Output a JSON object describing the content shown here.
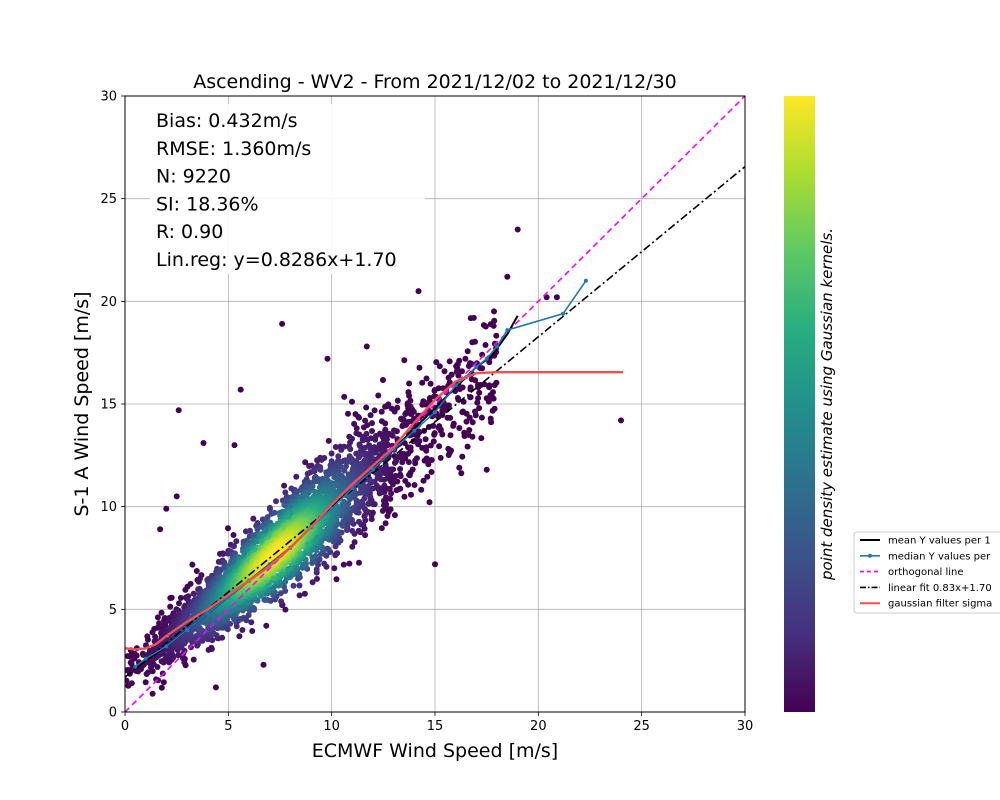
{
  "chart_data": {
    "type": "scatter",
    "title": "Ascending - WV2 - From 2021/12/02 to 2021/12/30",
    "xlabel": "ECMWF Wind Speed [m/s]",
    "ylabel": "S-1 A Wind Speed [m/s]",
    "xlim": [
      0,
      30
    ],
    "ylim": [
      0,
      30
    ],
    "xticks": [
      0,
      5,
      10,
      15,
      20,
      25,
      30
    ],
    "yticks": [
      0,
      5,
      10,
      15,
      20,
      25,
      30
    ],
    "grid": true,
    "colorbar_label": "point density estimate using Gaussian kernels.",
    "colormap": [
      "#440154",
      "#472f7d",
      "#3b528b",
      "#2c728e",
      "#21918c",
      "#28ae80",
      "#5ec962",
      "#addc30",
      "#fde725"
    ],
    "stats": [
      "Bias: 0.432m/s",
      "RMSE: 1.360m/s",
      "N: 9220",
      "SI: 18.36%",
      "R: 0.90",
      "Lin.reg: y=0.8286x+1.70"
    ],
    "legend": {
      "placement": "right of plot, partially cut off",
      "entries": [
        {
          "label": "mean Y values per 1",
          "color": "#000000",
          "style": "solid"
        },
        {
          "label": "median Y values per",
          "color": "#1f77b4",
          "style": "solid-dot"
        },
        {
          "label": "orthogonal line",
          "color": "#ff00ff",
          "style": "dashed"
        },
        {
          "label": "linear fit 0.83x+1.70",
          "color": "#000000",
          "style": "dashdot"
        },
        {
          "label": "gaussian filter sigma",
          "color": "#f05050",
          "style": "solid"
        }
      ]
    },
    "scatter": {
      "n_points_visible": 9220,
      "center_trend": {
        "slope": 0.8286,
        "intercept": 1.7
      },
      "density_peak": [
        7.2,
        7.6
      ],
      "outliers": [
        [
          2.6,
          14.7
        ],
        [
          3.8,
          13.1
        ],
        [
          5.3,
          13.0
        ],
        [
          5.6,
          15.7
        ],
        [
          7.6,
          18.9
        ],
        [
          9.8,
          17.2
        ],
        [
          11.7,
          17.8
        ],
        [
          14.2,
          20.5
        ],
        [
          15.0,
          7.2
        ],
        [
          17.5,
          11.8
        ],
        [
          19.0,
          23.5
        ],
        [
          18.5,
          21.2
        ],
        [
          20.4,
          20.2
        ],
        [
          20.9,
          20.2
        ],
        [
          24.0,
          14.2
        ],
        [
          6.7,
          2.3
        ],
        [
          4.4,
          1.2
        ],
        [
          2.5,
          10.5
        ],
        [
          1.7,
          8.9
        ],
        [
          2.0,
          9.9
        ]
      ]
    },
    "series": [
      {
        "name": "mean Y values per 1",
        "x": [
          0.5,
          1.0,
          2.0,
          3.0,
          4.0,
          5.0,
          6.0,
          7.0,
          8.0,
          9.0,
          10.0,
          11.0,
          12.0,
          13.0,
          14.0,
          15.0,
          16.0,
          17.0,
          17.7,
          18.5,
          19.0
        ],
        "y": [
          2.1,
          2.5,
          3.2,
          4.0,
          4.8,
          5.6,
          6.4,
          7.2,
          8.0,
          9.0,
          10.0,
          10.9,
          11.8,
          12.8,
          13.8,
          14.8,
          15.8,
          16.8,
          17.3,
          18.4,
          19.3
        ]
      },
      {
        "name": "median Y values per",
        "x": [
          0.5,
          1.0,
          2.0,
          3.0,
          4.0,
          5.0,
          6.0,
          7.0,
          8.0,
          9.0,
          10.0,
          11.0,
          12.0,
          13.0,
          14.0,
          15.0,
          16.0,
          16.5,
          17.0,
          17.5,
          18.0,
          18.5,
          21.2,
          22.3
        ],
        "y": [
          2.2,
          2.6,
          3.2,
          4.0,
          4.8,
          5.6,
          6.4,
          7.2,
          8.0,
          9.0,
          9.9,
          10.9,
          11.8,
          12.8,
          13.7,
          14.6,
          15.9,
          16.3,
          16.8,
          17.2,
          17.8,
          18.6,
          19.4,
          21.0
        ]
      },
      {
        "name": "orthogonal line",
        "x": [
          0,
          30
        ],
        "y": [
          0,
          30
        ]
      },
      {
        "name": "linear fit 0.83x+1.70",
        "x": [
          0,
          30
        ],
        "y": [
          1.7,
          26.56
        ]
      },
      {
        "name": "gaussian filter sigma",
        "x": [
          0,
          0.5,
          1.0,
          1.5,
          2.0,
          3.0,
          4.0,
          5.0,
          6.0,
          7.0,
          8.0,
          9.0,
          10.0,
          11.0,
          12.0,
          13.0,
          14.0,
          15.0,
          16.0,
          17.0,
          18.0,
          20.0,
          24.1
        ],
        "y": [
          3.1,
          3.05,
          3.1,
          3.3,
          3.7,
          4.4,
          5.0,
          5.7,
          6.4,
          7.1,
          8.0,
          9.0,
          10.1,
          11.1,
          12.0,
          12.9,
          14.1,
          15.2,
          16.1,
          16.5,
          16.55,
          16.55,
          16.55
        ]
      }
    ]
  }
}
